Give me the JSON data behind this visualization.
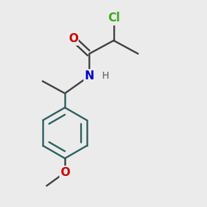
{
  "background_color": "#ebebeb",
  "bond_color": "#2d6060",
  "bond_color_upper": "#404040",
  "bond_width": 1.8,
  "atom_colors": {
    "Cl": "#3aaa20",
    "O_carbonyl": "#cc0000",
    "N": "#0000cc",
    "H": "#555555",
    "O_methoxy": "#cc0000"
  },
  "font_size_atoms": 12,
  "font_size_h": 10,
  "figsize": [
    3.0,
    3.0
  ],
  "dpi": 100
}
